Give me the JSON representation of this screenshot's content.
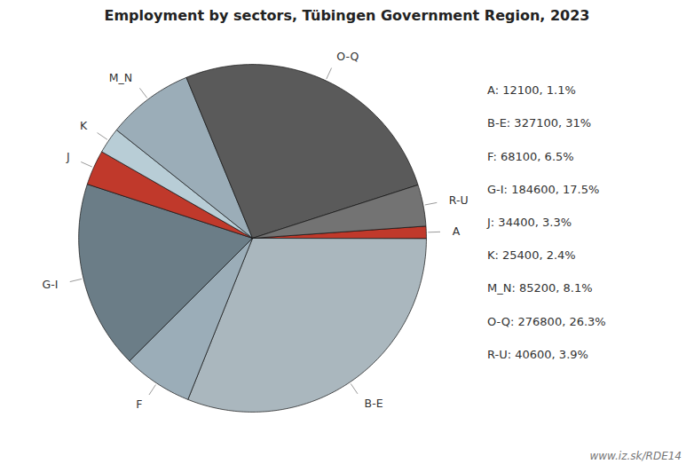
{
  "chart_data": {
    "type": "pie",
    "title": "Employment by sectors, Tübingen Government Region, 2023",
    "categories": [
      "A",
      "B-E",
      "F",
      "G-I",
      "J",
      "K",
      "M_N",
      "O-Q",
      "R-U"
    ],
    "values": [
      12100,
      327100,
      68100,
      184600,
      34400,
      25400,
      85200,
      276800,
      40600
    ],
    "colors": [
      "#c0392b",
      "#aab7be",
      "#9badb8",
      "#6b7d87",
      "#c0392b",
      "#b8cdd6",
      "#9badb8",
      "#5a5a5a",
      "#737373"
    ],
    "legend": "right",
    "legend_entries": [
      "A: 12100, 1.1%",
      "B-E: 327100, 31%",
      "F: 68100, 6.5%",
      "G-I: 184600, 17.5%",
      "J: 34400, 3.3%",
      "K: 25400, 2.4%",
      "M_N: 85200, 8.1%",
      "O-Q: 276800, 26.3%",
      "R-U: 40600, 3.9%"
    ],
    "annotation": "www.iz.sk/RDE14"
  }
}
